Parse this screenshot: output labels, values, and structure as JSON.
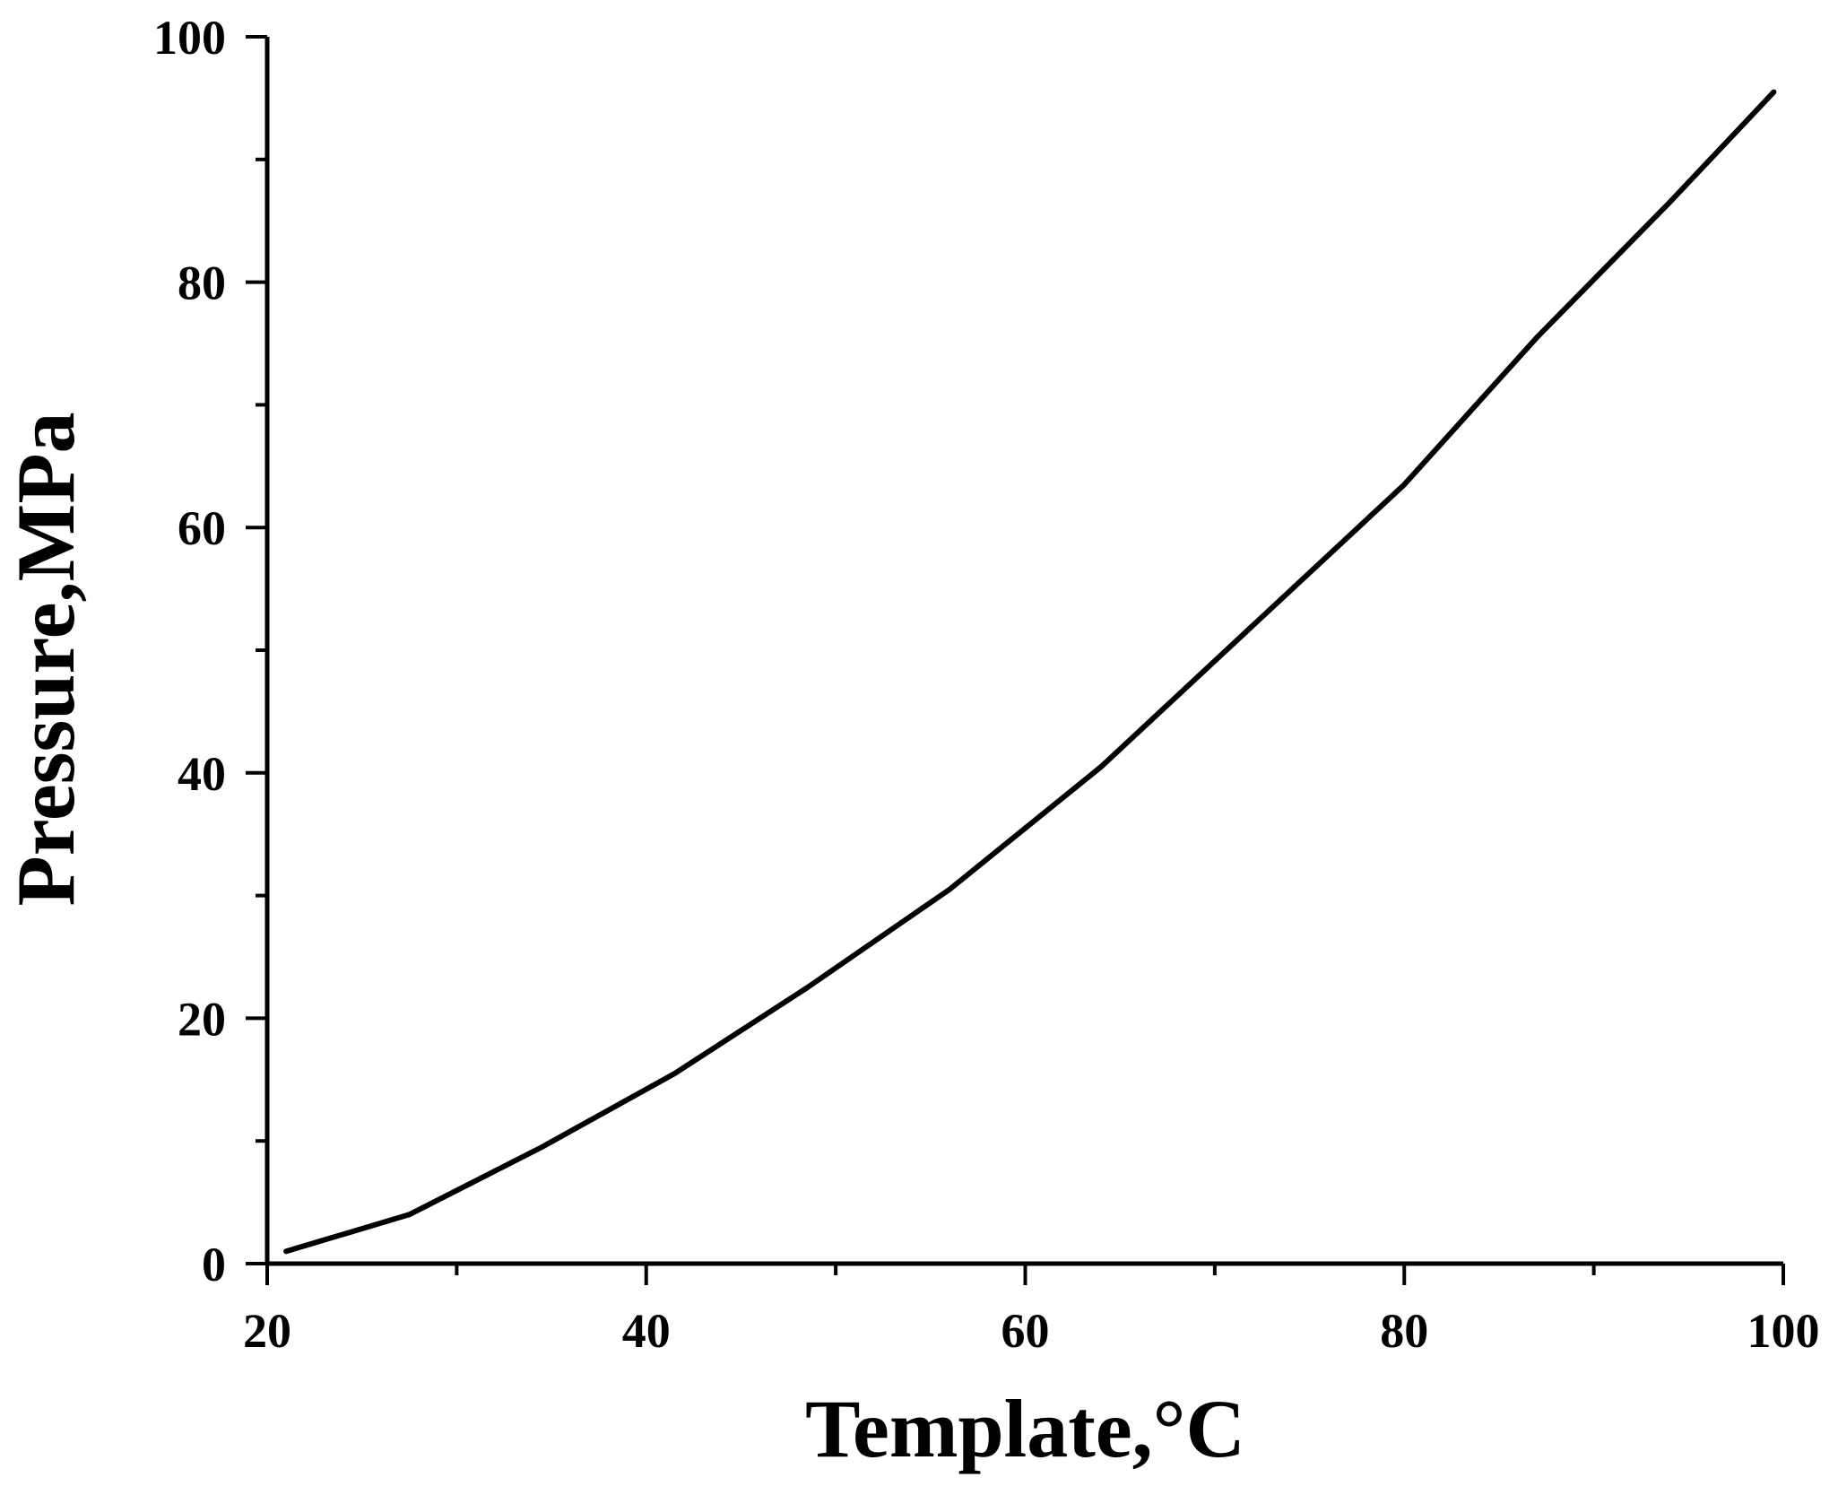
{
  "chart_data": {
    "type": "line",
    "xlabel": "Template,°C",
    "ylabel": "Pressure,MPa",
    "xlim": [
      20,
      100
    ],
    "ylim": [
      0,
      100
    ],
    "x_major_ticks": [
      20,
      40,
      60,
      80,
      100
    ],
    "x_minor_ticks": [
      30,
      50,
      70,
      90
    ],
    "y_major_ticks": [
      0,
      20,
      40,
      60,
      80,
      100
    ],
    "y_minor_ticks": [
      10,
      30,
      50,
      70,
      90
    ],
    "grid": false,
    "legend": "none",
    "line_color": "#000000",
    "series": [
      {
        "x": [
          21,
          27.5,
          34.5,
          41.5,
          48.5,
          56,
          64,
          72,
          80,
          87,
          94,
          99.5
        ],
        "y": [
          1,
          4,
          9.5,
          15.5,
          22.5,
          30.5,
          40.5,
          52,
          63.5,
          75.5,
          86.5,
          95.5
        ]
      }
    ]
  }
}
